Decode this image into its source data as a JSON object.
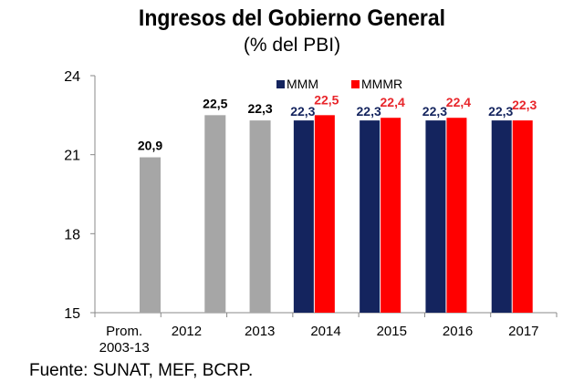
{
  "chart_data": {
    "type": "bar",
    "title": "Ingresos del Gobierno General",
    "subtitle": "(% del PBI)",
    "source": "Fuente: SUNAT, MEF, BCRP.",
    "categories": [
      "Prom.\n2003-13",
      "2012",
      "2013",
      "2014",
      "2015",
      "2016",
      "2017"
    ],
    "ylim": [
      15,
      24
    ],
    "yticks": [
      15,
      18,
      21,
      24
    ],
    "grid": false,
    "legend_position": "top-right",
    "historical": {
      "values": [
        20.9,
        22.5,
        22.3,
        null,
        null,
        null,
        null
      ],
      "labels": [
        "20,9",
        "22,5",
        "22,3",
        "",
        "",
        "",
        ""
      ],
      "color": "#a6a6a6"
    },
    "series": [
      {
        "name": "MMM",
        "values": [
          null,
          null,
          null,
          22.3,
          22.3,
          22.3,
          22.3
        ],
        "labels": [
          "",
          "",
          "",
          "22,3",
          "22,3",
          "22,3",
          "22,3"
        ],
        "color": "#14245e"
      },
      {
        "name": "MMMR",
        "values": [
          null,
          null,
          null,
          22.5,
          22.4,
          22.4,
          22.3
        ],
        "labels": [
          "",
          "",
          "",
          "22,5",
          "22,4",
          "22,4",
          "22,3"
        ],
        "color": "#ff0000"
      }
    ]
  }
}
